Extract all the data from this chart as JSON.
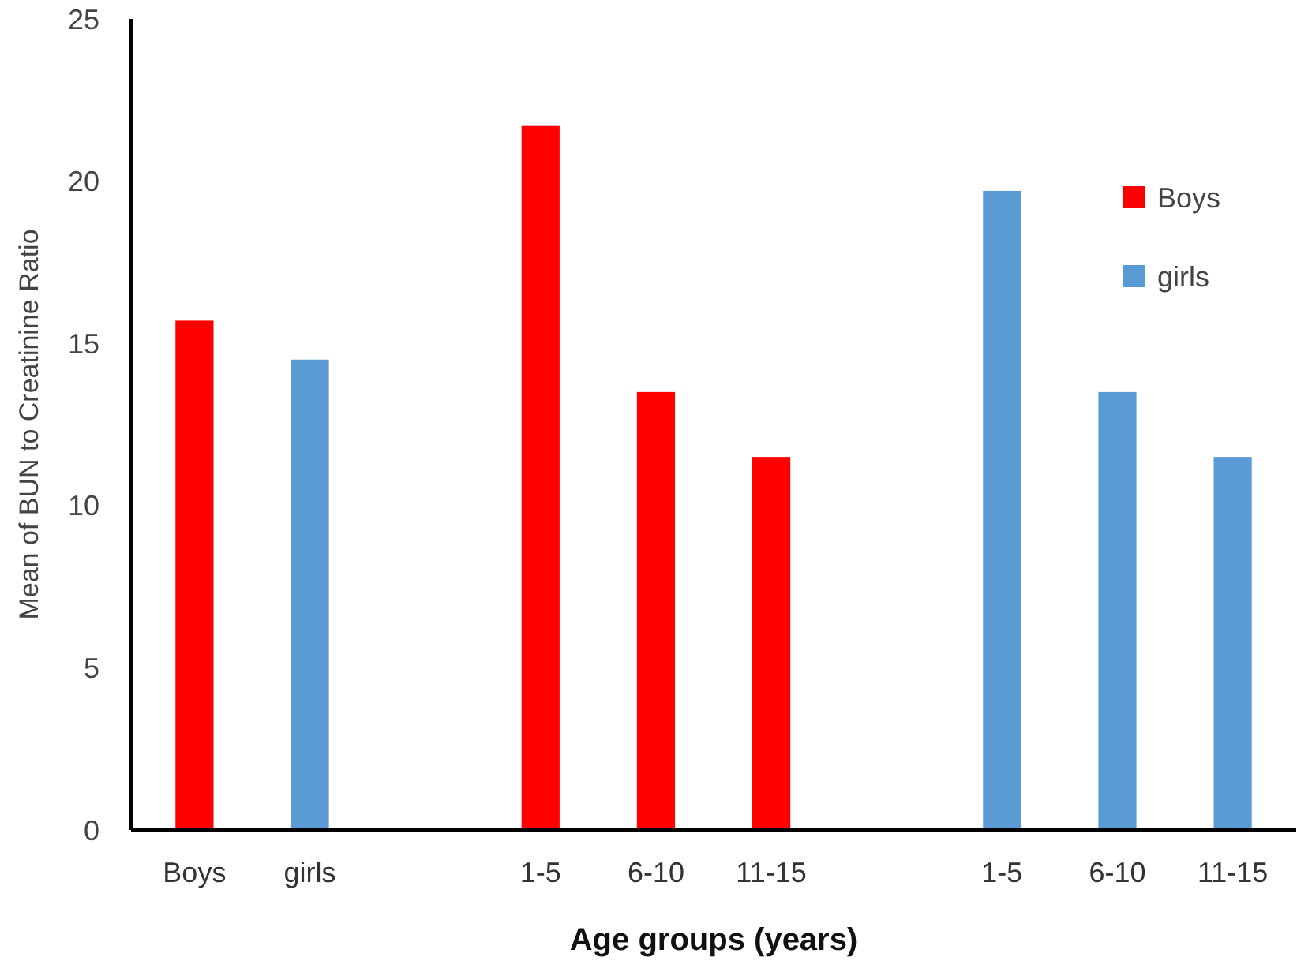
{
  "chart_data": {
    "type": "bar",
    "xlabel": "Age groups (years)",
    "ylabel": "Mean of BUN to Creatinine Ratio",
    "categories": [
      "Boys",
      "girls",
      null,
      "1-5",
      "6-10",
      "11-15",
      null,
      "1-5",
      "6-10",
      "11-15"
    ],
    "series": [
      {
        "name": "Boys",
        "color": "#ff0000",
        "values": [
          15.7,
          null,
          null,
          21.7,
          13.5,
          11.5,
          null,
          null,
          null,
          null
        ]
      },
      {
        "name": "girls",
        "color": "#5b9bd5",
        "values": [
          null,
          14.5,
          null,
          null,
          null,
          null,
          null,
          19.7,
          13.5,
          11.5
        ]
      }
    ],
    "ylim": [
      0,
      25
    ],
    "yticks": [
      0,
      5,
      10,
      15,
      20,
      25
    ],
    "grid": false,
    "legend": "top right"
  }
}
